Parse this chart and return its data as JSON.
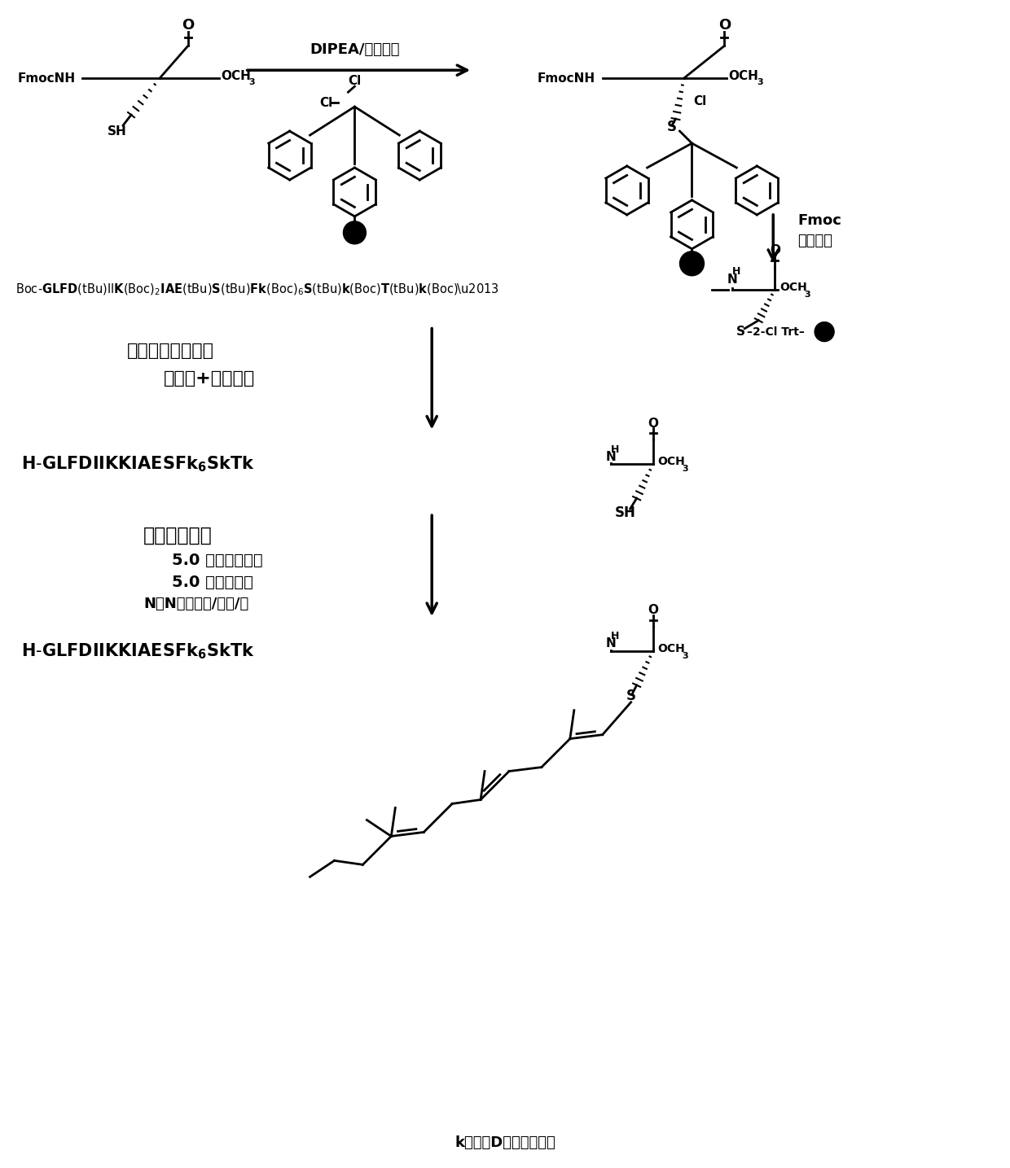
{
  "bg_color": "#ffffff",
  "step1_reagent_line1": "DIPEA/二氯甲烷",
  "step2_label1": "Fmoc",
  "step2_label2": "固相合成",
  "step3_reagent1": "三氯乙酸切割试剂",
  "step3_reagent2": "（切肽+脱保护）",
  "step4_reagent1": "法尼基化反应",
  "step4_reagent2": "5.0 当量法尼基溨",
  "step4_reagent3": "5.0 当量醋酸锹",
  "step4_reagent4": "N，N二甲酰胺/丁醇/水",
  "footer": "k指的是D构型的赖氨酸"
}
